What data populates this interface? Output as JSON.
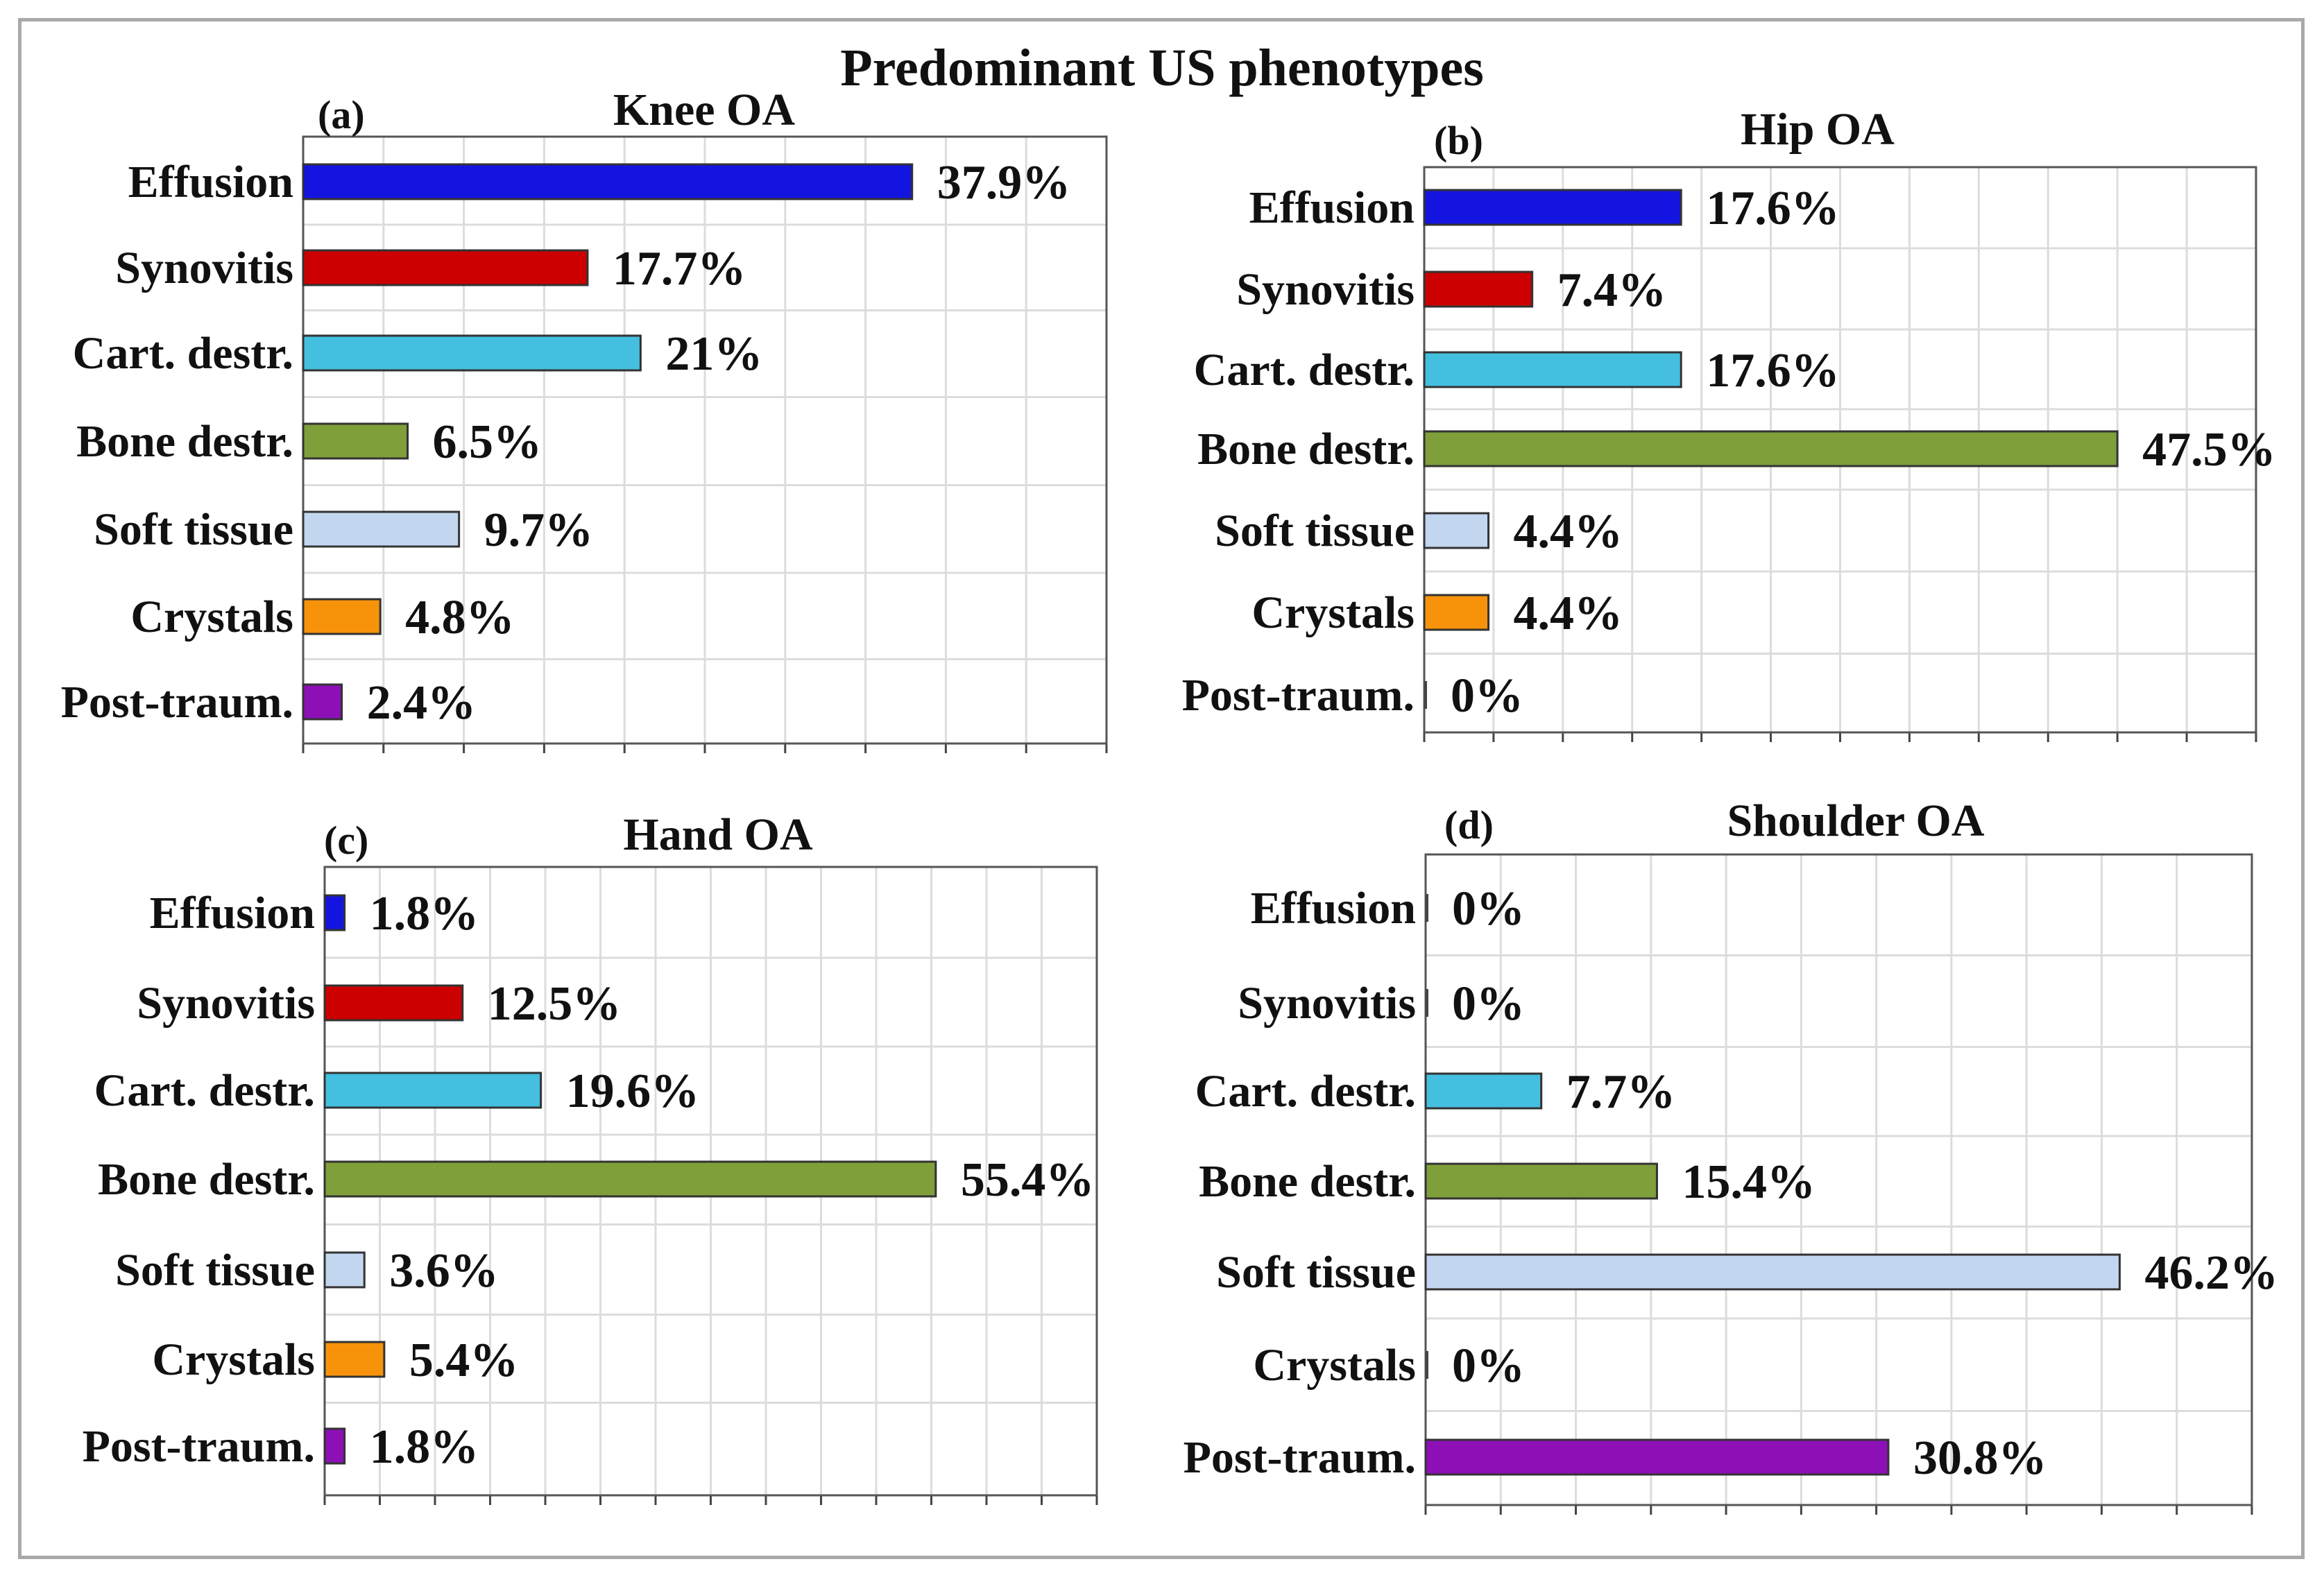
{
  "title": "Predominant US phenotypes",
  "colors": {
    "Effusion": "#1414e0",
    "Synovitis": "#cc0000",
    "Cart. destr.": "#44bfdf",
    "Bone destr.": "#7f9f3a",
    "Soft tissue": "#c3d6ef",
    "Crystals": "#f7930a",
    "Post-traum.": "#8c10b6"
  },
  "chart_data": [
    {
      "type": "bar",
      "panel": "(a)",
      "title": "Knee OA",
      "categories": [
        "Effusion",
        "Synovitis",
        "Cart. destr.",
        "Bone destr.",
        "Soft tissue",
        "Crystals",
        "Post-traum."
      ],
      "values": [
        37.9,
        17.7,
        21,
        6.5,
        9.7,
        4.8,
        2.4
      ],
      "value_labels": [
        "37.9%",
        "17.7%",
        "21%",
        "6.5%",
        "9.7%",
        "4.8%",
        "2.4%"
      ],
      "xlim": [
        0,
        50
      ]
    },
    {
      "type": "bar",
      "panel": "(b)",
      "title": "Hip OA",
      "categories": [
        "Effusion",
        "Synovitis",
        "Cart. destr.",
        "Bone destr.",
        "Soft tissue",
        "Crystals",
        "Post-traum."
      ],
      "values": [
        17.6,
        7.4,
        17.6,
        47.5,
        4.4,
        4.4,
        0
      ],
      "value_labels": [
        "17.6%",
        "7.4%",
        "17.6%",
        "47.5%",
        "4.4%",
        "4.4%",
        "0%"
      ],
      "xlim": [
        0,
        57
      ]
    },
    {
      "type": "bar",
      "panel": "(c)",
      "title": "Hand OA",
      "categories": [
        "Effusion",
        "Synovitis",
        "Cart. destr.",
        "Bone destr.",
        "Soft tissue",
        "Crystals",
        "Post-traum."
      ],
      "values": [
        1.8,
        12.5,
        19.6,
        55.4,
        3.6,
        5.4,
        1.8
      ],
      "value_labels": [
        "1.8%",
        "12.5%",
        "19.6%",
        "55.4%",
        "3.6%",
        "5.4%",
        "1.8%"
      ],
      "xlim": [
        0,
        70
      ]
    },
    {
      "type": "bar",
      "panel": "(d)",
      "title": "Shoulder OA",
      "categories": [
        "Effusion",
        "Synovitis",
        "Cart. destr.",
        "Bone destr.",
        "Soft tissue",
        "Crystals",
        "Post-traum."
      ],
      "values": [
        0,
        0,
        7.7,
        15.4,
        46.2,
        0,
        30.8
      ],
      "value_labels": [
        "0%",
        "0%",
        "7.7%",
        "15.4%",
        "46.2%",
        "0%",
        "30.8%"
      ],
      "xlim": [
        0,
        55
      ]
    }
  ]
}
